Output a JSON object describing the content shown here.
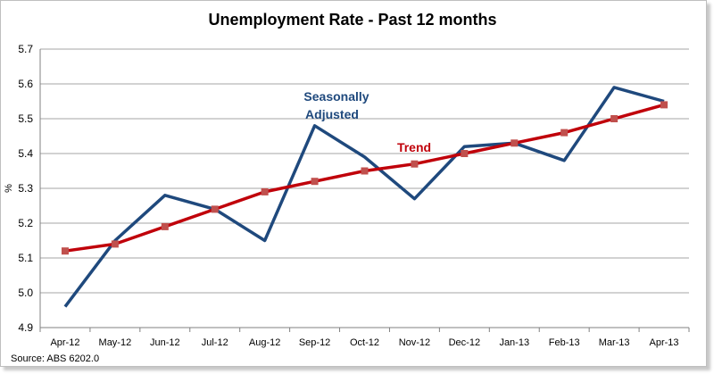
{
  "chart_data": {
    "type": "line",
    "title": "Unemployment Rate - Past 12 months",
    "ylabel": "%",
    "xlabel": "",
    "source": "Source: ABS 6202.0",
    "categories": [
      "Apr-12",
      "May-12",
      "Jun-12",
      "Jul-12",
      "Aug-12",
      "Sep-12",
      "Oct-12",
      "Nov-12",
      "Dec-12",
      "Jan-13",
      "Feb-13",
      "Mar-13",
      "Apr-13"
    ],
    "y_ticks": [
      "4.9",
      "5.0",
      "5.1",
      "5.2",
      "5.3",
      "5.4",
      "5.5",
      "5.6",
      "5.7"
    ],
    "ylim": [
      4.9,
      5.7
    ],
    "grid": true,
    "series": [
      {
        "name": "Seasonally Adjusted",
        "label_lines": [
          "Seasonally",
          "Adjusted"
        ],
        "color": "#1f497d",
        "values": [
          4.96,
          5.15,
          5.28,
          5.24,
          5.15,
          5.48,
          5.39,
          5.27,
          5.42,
          5.43,
          5.38,
          5.59,
          5.55
        ]
      },
      {
        "name": "Trend",
        "label_lines": [
          "Trend"
        ],
        "color": "#c0000a",
        "marker_color": "#c0504d",
        "values": [
          5.12,
          5.14,
          5.19,
          5.24,
          5.29,
          5.32,
          5.35,
          5.37,
          5.4,
          5.43,
          5.46,
          5.5,
          5.54
        ]
      }
    ]
  }
}
